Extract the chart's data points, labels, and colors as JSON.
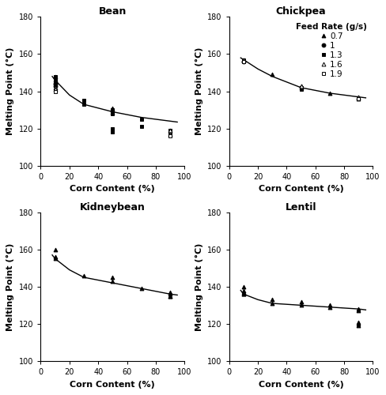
{
  "title_fontsize": 9,
  "axis_label_fontsize": 8,
  "tick_fontsize": 7,
  "legend_fontsize": 7.5,
  "subplots": [
    {
      "title": "Bean",
      "curve_x": [
        8,
        10,
        15,
        20,
        30,
        50,
        70,
        90,
        95
      ],
      "curve_y": [
        148,
        146,
        142,
        138,
        133,
        129,
        126,
        124,
        123.5
      ],
      "scatter": [
        {
          "x": [
            10,
            10,
            10
          ],
          "y": [
            148,
            146,
            145
          ],
          "marker": "^",
          "filled": true
        },
        {
          "x": [
            10,
            10
          ],
          "y": [
            144,
            143
          ],
          "marker": "o",
          "filled": true
        },
        {
          "x": [
            10,
            10,
            10,
            10
          ],
          "y": [
            148,
            147,
            146,
            145
          ],
          "marker": "s",
          "filled": true
        },
        {
          "x": [
            10,
            10
          ],
          "y": [
            142,
            141
          ],
          "marker": "^",
          "filled": false
        },
        {
          "x": [
            10
          ],
          "y": [
            140
          ],
          "marker": "s",
          "filled": false
        },
        {
          "x": [
            30,
            30
          ],
          "y": [
            135,
            133
          ],
          "marker": "s",
          "filled": true
        },
        {
          "x": [
            50,
            50,
            50
          ],
          "y": [
            131,
            130,
            129
          ],
          "marker": "^",
          "filled": true
        },
        {
          "x": [
            50,
            50,
            50
          ],
          "y": [
            130,
            129,
            128
          ],
          "marker": "s",
          "filled": true
        },
        {
          "x": [
            50,
            50
          ],
          "y": [
            120,
            118
          ],
          "marker": "s",
          "filled": true
        },
        {
          "x": [
            70,
            70
          ],
          "y": [
            125,
            121
          ],
          "marker": "s",
          "filled": true
        },
        {
          "x": [
            90,
            90,
            90,
            90
          ],
          "y": [
            119,
            118,
            117,
            116
          ],
          "marker": "s",
          "filled": true
        },
        {
          "x": [
            90,
            90
          ],
          "y": [
            119,
            117
          ],
          "marker": "^",
          "filled": false
        },
        {
          "x": [
            90
          ],
          "y": [
            116
          ],
          "marker": "s",
          "filled": false
        }
      ]
    },
    {
      "title": "Chickpea",
      "curve_x": [
        8,
        10,
        20,
        30,
        50,
        70,
        90,
        95
      ],
      "curve_y": [
        158,
        157,
        152,
        148,
        142,
        139,
        137,
        136.5
      ],
      "scatter": [
        {
          "x": [
            10
          ],
          "y": [
            157
          ],
          "marker": "^",
          "filled": true
        },
        {
          "x": [
            10
          ],
          "y": [
            156
          ],
          "marker": "o",
          "filled": true
        },
        {
          "x": [
            10
          ],
          "y": [
            157
          ],
          "marker": "s",
          "filled": true
        },
        {
          "x": [
            10
          ],
          "y": [
            157
          ],
          "marker": "^",
          "filled": false
        },
        {
          "x": [
            10
          ],
          "y": [
            156
          ],
          "marker": "s",
          "filled": false
        },
        {
          "x": [
            30
          ],
          "y": [
            149
          ],
          "marker": "^",
          "filled": true
        },
        {
          "x": [
            50,
            50
          ],
          "y": [
            143,
            142
          ],
          "marker": "^",
          "filled": true
        },
        {
          "x": [
            50,
            50
          ],
          "y": [
            142,
            141
          ],
          "marker": "s",
          "filled": true
        },
        {
          "x": [
            50
          ],
          "y": [
            143
          ],
          "marker": "^",
          "filled": false
        },
        {
          "x": [
            70
          ],
          "y": [
            139
          ],
          "marker": "^",
          "filled": true
        },
        {
          "x": [
            90,
            90
          ],
          "y": [
            137,
            136
          ],
          "marker": "^",
          "filled": true
        },
        {
          "x": [
            90
          ],
          "y": [
            137
          ],
          "marker": "^",
          "filled": false
        },
        {
          "x": [
            90
          ],
          "y": [
            136
          ],
          "marker": "s",
          "filled": false
        }
      ]
    },
    {
      "title": "Kidneybean",
      "curve_x": [
        8,
        10,
        20,
        30,
        50,
        70,
        90,
        95
      ],
      "curve_y": [
        157,
        155,
        149,
        145,
        142,
        139,
        136,
        135.5
      ],
      "scatter": [
        {
          "x": [
            10
          ],
          "y": [
            160
          ],
          "marker": "^",
          "filled": true
        },
        {
          "x": [
            10,
            10
          ],
          "y": [
            156,
            155
          ],
          "marker": "^",
          "filled": true
        },
        {
          "x": [
            30
          ],
          "y": [
            146
          ],
          "marker": "^",
          "filled": true
        },
        {
          "x": [
            50,
            50
          ],
          "y": [
            145,
            143
          ],
          "marker": "^",
          "filled": true
        },
        {
          "x": [
            70
          ],
          "y": [
            139
          ],
          "marker": "^",
          "filled": true
        },
        {
          "x": [
            90,
            90,
            90,
            90
          ],
          "y": [
            137,
            136,
            135,
            135
          ],
          "marker": "^",
          "filled": true
        }
      ]
    },
    {
      "title": "Lentil",
      "curve_x": [
        8,
        10,
        20,
        30,
        50,
        70,
        90,
        95
      ],
      "curve_y": [
        138,
        136,
        133,
        131,
        130,
        129,
        128,
        127.5
      ],
      "scatter": [
        {
          "x": [
            10,
            10,
            10,
            10,
            10
          ],
          "y": [
            140,
            138,
            137,
            136,
            136
          ],
          "marker": "^",
          "filled": true
        },
        {
          "x": [
            30,
            30
          ],
          "y": [
            133,
            131
          ],
          "marker": "^",
          "filled": true
        },
        {
          "x": [
            50,
            50
          ],
          "y": [
            132,
            130
          ],
          "marker": "^",
          "filled": true
        },
        {
          "x": [
            70,
            70
          ],
          "y": [
            130,
            129
          ],
          "marker": "^",
          "filled": true
        },
        {
          "x": [
            90,
            90
          ],
          "y": [
            128,
            127
          ],
          "marker": "^",
          "filled": true
        },
        {
          "x": [
            90,
            90,
            90
          ],
          "y": [
            121,
            120,
            119
          ],
          "marker": "^",
          "filled": true
        }
      ]
    }
  ],
  "legend_entries": [
    {
      "label": "0.7",
      "marker": "^",
      "filled": true
    },
    {
      "label": "1",
      "marker": "o",
      "filled": true
    },
    {
      "label": "1.3",
      "marker": "s",
      "filled": true
    },
    {
      "label": "1.6",
      "marker": "^",
      "filled": false
    },
    {
      "label": "1.9",
      "marker": "s",
      "filled": false
    }
  ],
  "ylim": [
    100,
    180
  ],
  "xlim": [
    0,
    100
  ],
  "yticks": [
    100,
    120,
    140,
    160,
    180
  ],
  "xticks": [
    0,
    20,
    40,
    60,
    80,
    100
  ],
  "xlabel": "Corn Content (%)",
  "ylabel": "Melting Point (°C)"
}
